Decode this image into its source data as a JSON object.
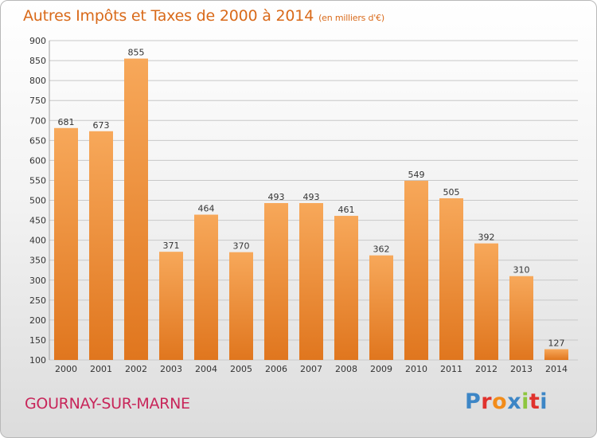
{
  "header": {
    "title": "Autres Impôts et Taxes de 2000 à 2014",
    "subtitle": "(en milliers d'€)"
  },
  "footer": {
    "commune": "GOURNAY-SUR-MARNE",
    "logo_text": "Proxiti",
    "logo_colors": [
      "#3d86c6",
      "#e0322d",
      "#f28c1a",
      "#3d86c6",
      "#8dc63f",
      "#e0322d",
      "#3d86c6"
    ]
  },
  "colors": {
    "bar_top": "#f7a85a",
    "bar_bottom": "#e0761e",
    "grid": "#c8c8c8",
    "text": "#333333"
  },
  "chart_data": {
    "type": "bar",
    "categories": [
      "2000",
      "2001",
      "2002",
      "2003",
      "2004",
      "2005",
      "2006",
      "2007",
      "2008",
      "2009",
      "2010",
      "2011",
      "2012",
      "2013",
      "2014"
    ],
    "values": [
      681,
      673,
      855,
      371,
      464,
      370,
      493,
      493,
      461,
      362,
      549,
      505,
      392,
      310,
      127
    ],
    "ylim": [
      100,
      900
    ],
    "yticks": [
      100,
      150,
      200,
      250,
      300,
      350,
      400,
      450,
      500,
      550,
      600,
      650,
      700,
      750,
      800,
      850,
      900
    ],
    "grid": true,
    "data_labels": true
  }
}
